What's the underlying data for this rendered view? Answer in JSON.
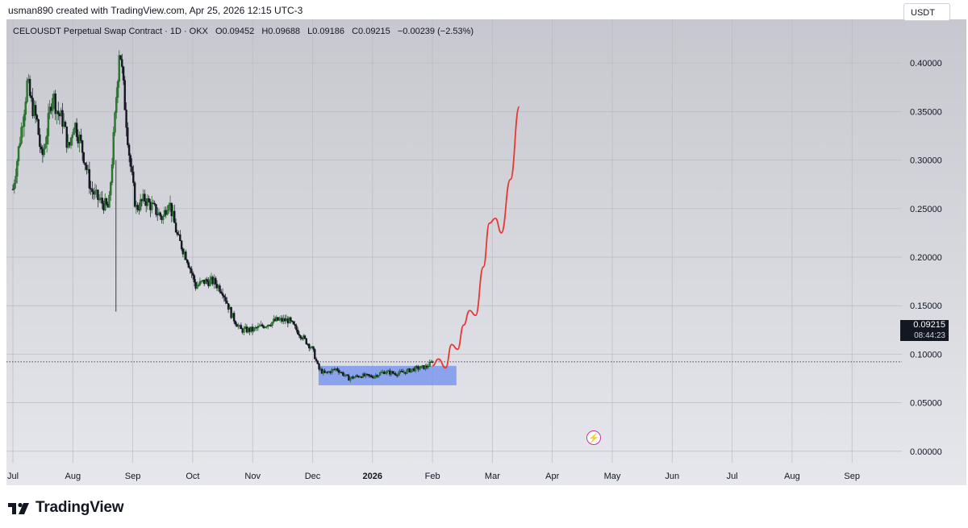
{
  "caption": "usman890 created with TradingView.com, Apr 25, 2026 12:15 UTC-3",
  "legend": {
    "symbol": "CELOUSDT Perpetual Swap Contract · 1D · OKX",
    "open": "O0.09452",
    "high": "H0.09688",
    "low": "L0.09186",
    "close": "C0.09215",
    "change": "−0.00239 (−2.53%)"
  },
  "currency_button": "USDT",
  "price_badge": {
    "price": "0.09215",
    "countdown": "08:44:23"
  },
  "logo_text": "TradingView",
  "icons": [
    "tradingview-logo-icon",
    "alert-bolt-icon"
  ],
  "colors": {
    "up_candle": "#1b5e20",
    "down_candle": "#131722",
    "projection": "#e53935",
    "range_box": "#6f8fef",
    "price_line": "#131722"
  },
  "chart_data": {
    "type": "candlestick",
    "symbol": "CELOUSDT",
    "interval": "1D",
    "exchange": "OKX",
    "y_ticks": [
      "0.40000",
      "0.35000",
      "0.30000",
      "0.25000",
      "0.20000",
      "0.15000",
      "0.10000",
      "0.05000",
      "0.00000"
    ],
    "x_ticks": [
      "Jul",
      "Aug",
      "Sep",
      "Oct",
      "Nov",
      "Dec",
      "2026",
      "Feb",
      "Mar",
      "Apr",
      "May",
      "Jun",
      "Jul",
      "Aug",
      "Sep"
    ],
    "ylim": [
      -0.035,
      0.445
    ],
    "last_price": 0.09215,
    "price_path": [
      {
        "t": 0,
        "v": 0.27
      },
      {
        "t": 0.07,
        "v": 0.3
      },
      {
        "t": 0.18,
        "v": 0.35
      },
      {
        "t": 0.24,
        "v": 0.38
      },
      {
        "t": 0.3,
        "v": 0.36
      },
      {
        "t": 0.4,
        "v": 0.34
      },
      {
        "t": 0.48,
        "v": 0.3
      },
      {
        "t": 0.57,
        "v": 0.33
      },
      {
        "t": 0.66,
        "v": 0.37
      },
      {
        "t": 0.74,
        "v": 0.35
      },
      {
        "t": 0.84,
        "v": 0.34
      },
      {
        "t": 0.93,
        "v": 0.31
      },
      {
        "t": 1.02,
        "v": 0.34
      },
      {
        "t": 1.12,
        "v": 0.32
      },
      {
        "t": 1.2,
        "v": 0.3
      },
      {
        "t": 1.3,
        "v": 0.27
      },
      {
        "t": 1.42,
        "v": 0.26
      },
      {
        "t": 1.6,
        "v": 0.25
      },
      {
        "t": 1.7,
        "v": 0.34
      },
      {
        "t": 1.78,
        "v": 0.42
      },
      {
        "t": 1.85,
        "v": 0.37
      },
      {
        "t": 1.95,
        "v": 0.3
      },
      {
        "t": 2.05,
        "v": 0.25
      },
      {
        "t": 2.2,
        "v": 0.26
      },
      {
        "t": 2.35,
        "v": 0.25
      },
      {
        "t": 2.5,
        "v": 0.24
      },
      {
        "t": 2.6,
        "v": 0.26
      },
      {
        "t": 2.75,
        "v": 0.22
      },
      {
        "t": 2.9,
        "v": 0.2
      },
      {
        "t": 3.05,
        "v": 0.17
      },
      {
        "t": 3.2,
        "v": 0.175
      },
      {
        "t": 3.35,
        "v": 0.175
      },
      {
        "t": 3.5,
        "v": 0.165
      },
      {
        "t": 3.65,
        "v": 0.14
      },
      {
        "t": 3.8,
        "v": 0.125
      },
      {
        "t": 4.0,
        "v": 0.125
      },
      {
        "t": 4.2,
        "v": 0.13
      },
      {
        "t": 4.4,
        "v": 0.135
      },
      {
        "t": 4.6,
        "v": 0.135
      },
      {
        "t": 4.8,
        "v": 0.12
      },
      {
        "t": 5.0,
        "v": 0.105
      },
      {
        "t": 5.1,
        "v": 0.085
      },
      {
        "t": 5.2,
        "v": 0.08
      },
      {
        "t": 5.4,
        "v": 0.085
      },
      {
        "t": 5.6,
        "v": 0.075
      },
      {
        "t": 5.8,
        "v": 0.078
      },
      {
        "t": 6.0,
        "v": 0.077
      },
      {
        "t": 6.2,
        "v": 0.082
      },
      {
        "t": 6.4,
        "v": 0.08
      },
      {
        "t": 6.55,
        "v": 0.082
      },
      {
        "t": 6.7,
        "v": 0.085
      },
      {
        "t": 6.9,
        "v": 0.087
      },
      {
        "t": 7.0,
        "v": 0.09215
      }
    ],
    "range_box": {
      "t_start": 5.1,
      "t_end": 7.4,
      "top": 0.088,
      "bottom": 0.068
    },
    "projection": [
      {
        "t": 7.0,
        "v": 0.088
      },
      {
        "t": 7.1,
        "v": 0.095
      },
      {
        "t": 7.22,
        "v": 0.086
      },
      {
        "t": 7.32,
        "v": 0.11
      },
      {
        "t": 7.42,
        "v": 0.105
      },
      {
        "t": 7.52,
        "v": 0.13
      },
      {
        "t": 7.62,
        "v": 0.145
      },
      {
        "t": 7.72,
        "v": 0.14
      },
      {
        "t": 7.85,
        "v": 0.19
      },
      {
        "t": 7.95,
        "v": 0.235
      },
      {
        "t": 8.05,
        "v": 0.24
      },
      {
        "t": 8.15,
        "v": 0.225
      },
      {
        "t": 8.3,
        "v": 0.28
      },
      {
        "t": 8.45,
        "v": 0.355
      }
    ],
    "grid": true,
    "legend_placement": "top-left"
  }
}
